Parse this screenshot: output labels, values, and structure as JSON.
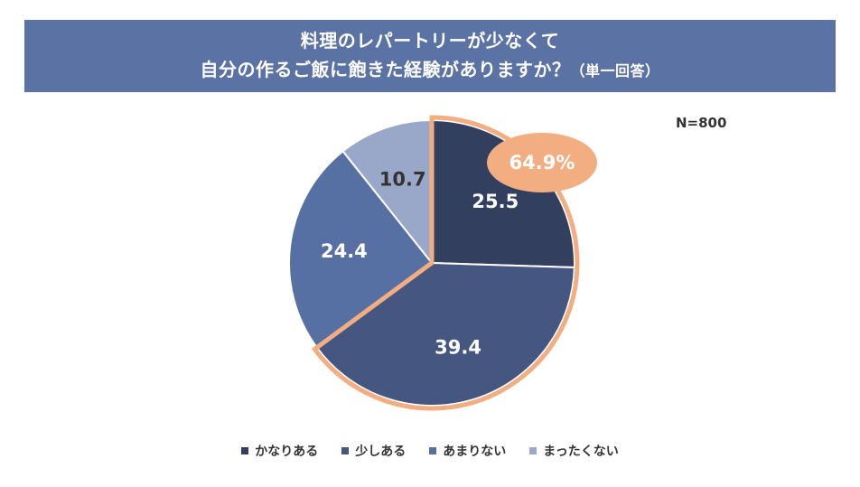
{
  "title": {
    "line1": "料理のレパートリーが少なくて",
    "line2": "自分の作るご飯に飽きた経験がありますか？",
    "line2_suffix": "（単一回答）"
  },
  "n_label": "N=800",
  "highlight": {
    "label": "64.9%",
    "color": "#f2ae80"
  },
  "chart_data": {
    "type": "pie",
    "title": "料理のレパートリーが少なくて自分の作るご飯に飽きた経験がありますか？（単一回答）",
    "categories": [
      "かなりある",
      "少しある",
      "あまりない",
      "まったくない"
    ],
    "values": [
      25.5,
      39.4,
      24.4,
      10.7
    ],
    "value_labels": [
      "25.5",
      "39.4",
      "24.4",
      "10.7"
    ],
    "colors": [
      "#333f5f",
      "#455781",
      "#5770a4",
      "#99a8c8"
    ],
    "label_colors": [
      "#ffffff",
      "#ffffff",
      "#ffffff",
      "#333333"
    ],
    "highlighted_categories": [
      "かなりある",
      "少しある"
    ],
    "legend_position": "bottom",
    "start": "12 o'clock",
    "direction": "clockwise"
  }
}
